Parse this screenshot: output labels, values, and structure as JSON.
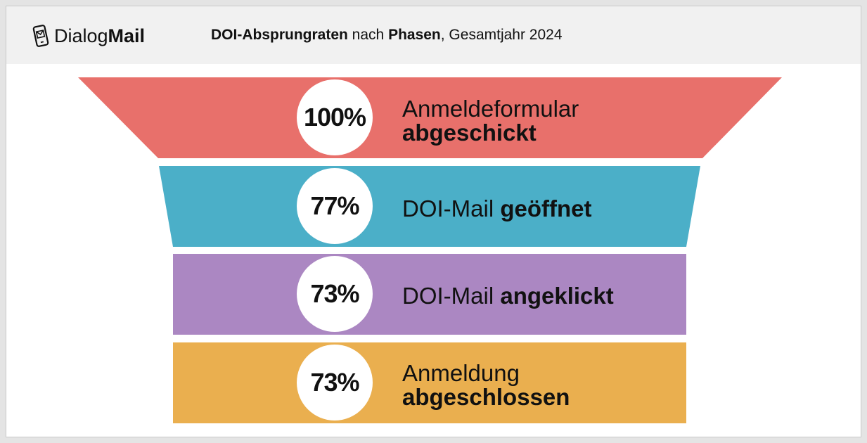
{
  "brand": {
    "light": "Dialog",
    "bold": "Mail",
    "icon": "phone-mail-icon"
  },
  "title": {
    "part1_bold": "DOI-Absprungraten",
    "part2": " nach ",
    "part3_bold": "Phasen",
    "part4": ", Gesamtjahr 2024"
  },
  "chart_data": {
    "type": "funnel",
    "title": "DOI-Absprungraten nach Phasen, Gesamtjahr 2024",
    "categories": [
      "Anmeldeformular abgeschickt",
      "DOI-Mail geöffnet",
      "DOI-Mail angeklickt",
      "Anmeldung abgeschlossen"
    ],
    "values": [
      100,
      77,
      73,
      73
    ],
    "unit": "%",
    "stages": [
      {
        "value_label": "100%",
        "value": 100,
        "label_light": "Anmeldeformular",
        "label_bold": "abgeschickt",
        "color": "#E8706B"
      },
      {
        "value_label": "77%",
        "value": 77,
        "label_light": "DOI-Mail ",
        "label_bold": "geöffnet",
        "color": "#4BAFC8"
      },
      {
        "value_label": "73%",
        "value": 73,
        "label_light": "DOI-Mail ",
        "label_bold": "angeklickt",
        "color": "#AB87C2"
      },
      {
        "value_label": "73%",
        "value": 73,
        "label_light": "Anmeldung",
        "label_bold": "abgeschlossen",
        "color": "#EAAF4F"
      }
    ]
  }
}
